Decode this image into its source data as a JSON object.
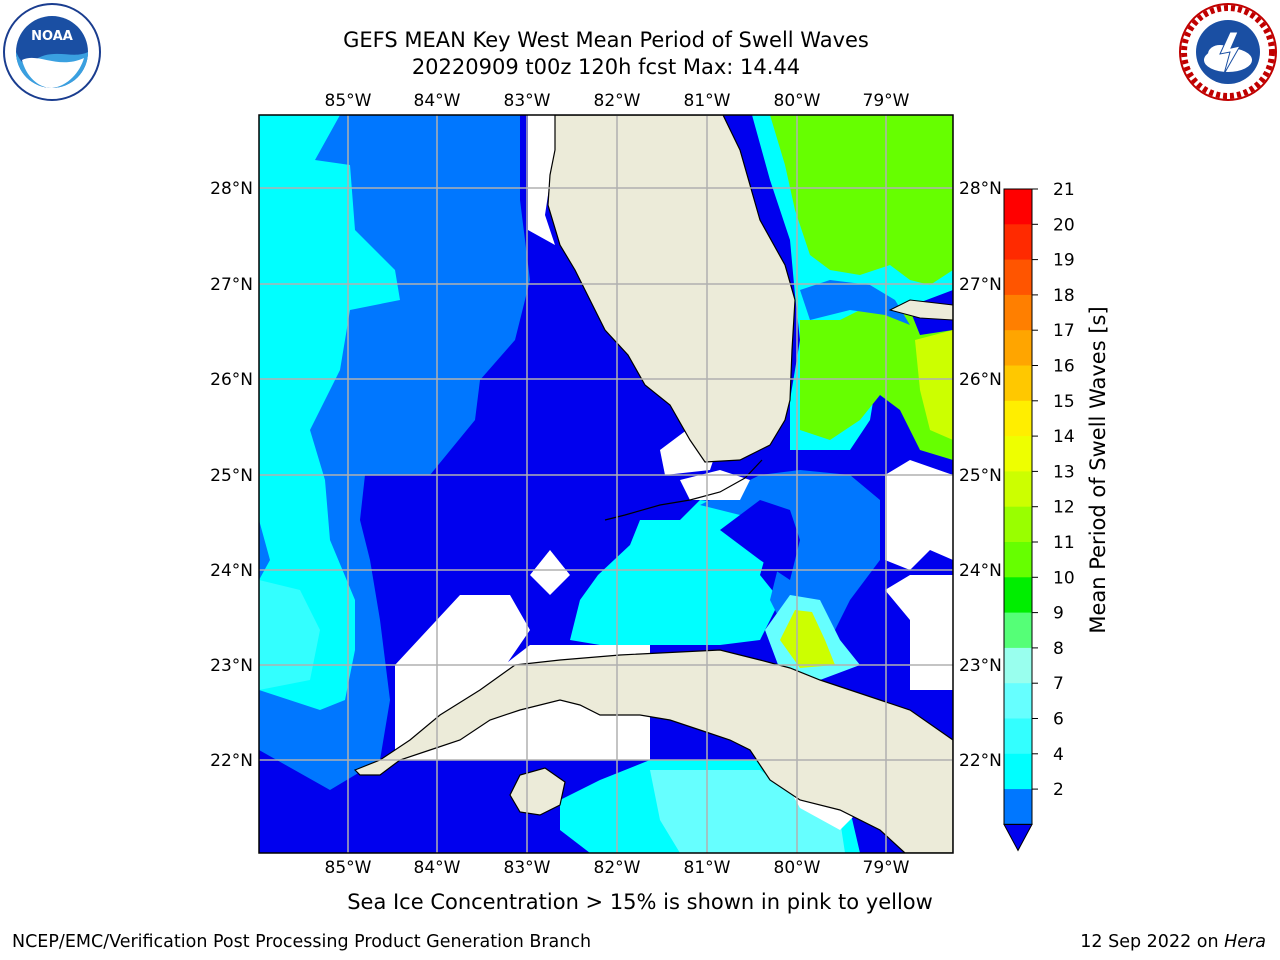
{
  "header": {
    "title_line1": "GEFS MEAN Key West Mean Period of Swell Waves",
    "title_line2": "20220909 t00z 120h fcst   Max: 14.44"
  },
  "logos": {
    "left": {
      "text": "NOAA",
      "icon": "noaa-logo-icon"
    },
    "right": {
      "icon": "national-weather-service-logo-icon"
    }
  },
  "map": {
    "lon_labels": [
      "85°W",
      "84°W",
      "83°W",
      "82°W",
      "81°W",
      "80°W",
      "79°W"
    ],
    "lat_labels": [
      "28°N",
      "27°N",
      "26°N",
      "25°N",
      "24°N",
      "23°N",
      "22°N"
    ],
    "extent": {
      "lon": [
        -86.0,
        -78.25
      ],
      "lat": [
        21.0,
        28.75
      ]
    },
    "grid": true
  },
  "colorbar": {
    "label": "Mean Period of Swell Waves [s]",
    "ticks": [
      "21",
      "20",
      "19",
      "18",
      "17",
      "16",
      "15",
      "14",
      "13",
      "12",
      "11",
      "10",
      "9",
      "8",
      "7",
      "6",
      "4",
      "2"
    ],
    "colors": [
      "#ff0000",
      "#ff2a00",
      "#ff5500",
      "#ff7f00",
      "#ffa500",
      "#ffc800",
      "#ffee00",
      "#eeff00",
      "#ccff00",
      "#99ff00",
      "#66ff00",
      "#00ee00",
      "#55ff77",
      "#99ffee",
      "#66ffff",
      "#33ffff",
      "#00ffff",
      "#0077ff"
    ],
    "under_color": "#0000ee"
  },
  "colors": {
    "land": "#ecebd9",
    "ocean_dark": "#0000ee",
    "ocean_mid": "#0077ff",
    "ocean_cyan": "#00ffff",
    "swell_green": "#66ff00",
    "swell_lime": "#ccff00",
    "grid": "#b0b0b0"
  },
  "note": "Sea Ice Concentration > 15% is shown in pink to yellow",
  "footer": {
    "left": "NCEP/EMC/Verification Post Processing Product Generation Branch",
    "date": "12 Sep 2022 on ",
    "machine": "Hera"
  }
}
